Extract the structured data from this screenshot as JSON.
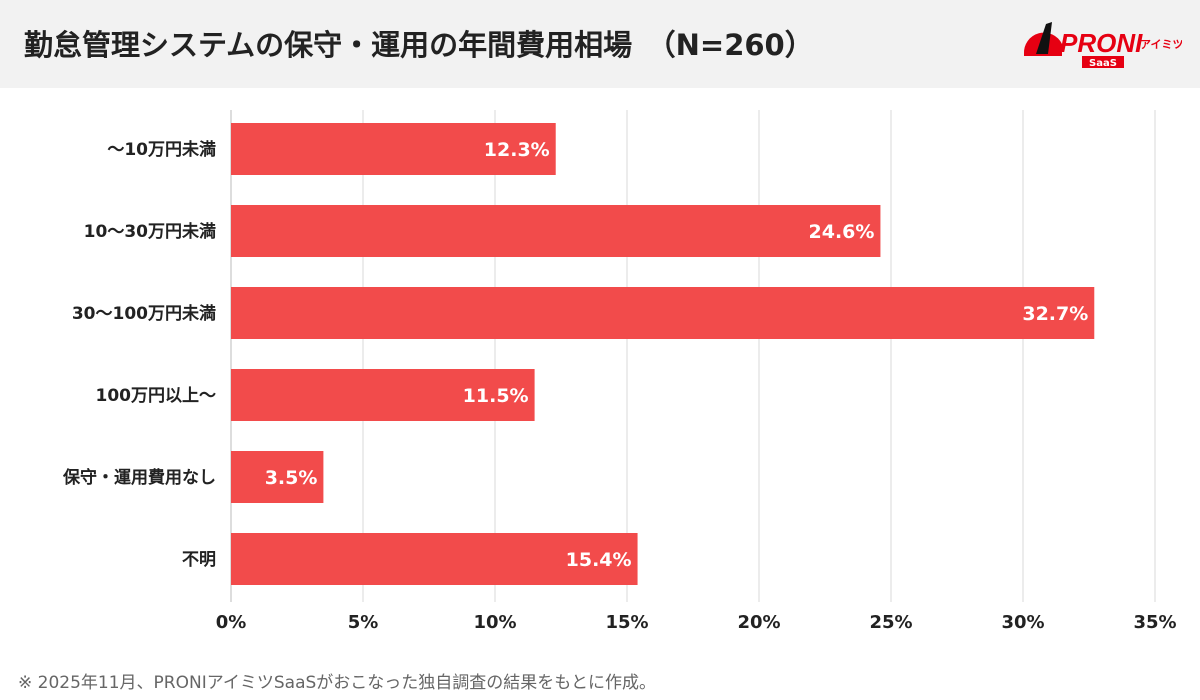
{
  "header": {
    "title": "勤怠管理システムの保守・運用の年間費用相場　（N=260）",
    "logo_text": "PRONI",
    "logo_sub": "アイミツ",
    "logo_badge": "SaaS"
  },
  "chart_data": {
    "type": "bar",
    "orientation": "horizontal",
    "categories": [
      "〜10万円未満",
      "10〜30万円未満",
      "30〜100万円未満",
      "100万円以上〜",
      "保守・運用費用なし",
      "不明"
    ],
    "values": [
      12.3,
      24.6,
      32.7,
      11.5,
      3.5,
      15.4
    ],
    "data_labels": [
      "12.3%",
      "24.6%",
      "32.7%",
      "11.5%",
      "3.5%",
      "15.4%"
    ],
    "xlim": [
      0,
      35
    ],
    "xticks": [
      0,
      5,
      10,
      15,
      20,
      25,
      30,
      35
    ],
    "xtick_labels": [
      "0%",
      "5%",
      "10%",
      "15%",
      "20%",
      "25%",
      "30%",
      "35%"
    ],
    "grid": true,
    "bar_color": "#f24b4b",
    "grid_color": "#d9d9d9"
  },
  "footer": {
    "note": "※ 2025年11月、PRONIアイミツSaaSがおこなった独自調査の結果をもとに作成。"
  }
}
